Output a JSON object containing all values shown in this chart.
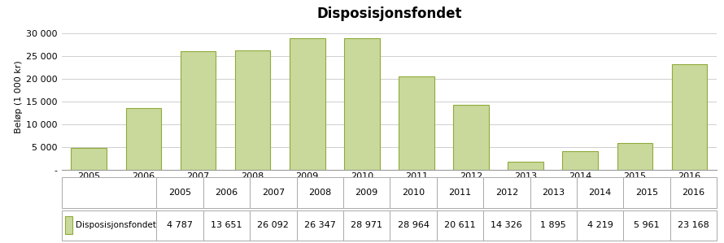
{
  "title": "Disposisjonsfondet",
  "ylabel": "Beløp (1 000 kr)",
  "categories": [
    "2005",
    "2006",
    "2007",
    "2008",
    "2009",
    "2010",
    "2011",
    "2012",
    "2013",
    "2014",
    "2015",
    "2016"
  ],
  "values": [
    4787,
    13651,
    26092,
    26347,
    28971,
    28964,
    20611,
    14326,
    1895,
    4219,
    5961,
    23168
  ],
  "bar_color": "#c9d99b",
  "bar_edge_color": "#8faa3a",
  "background_color": "#ffffff",
  "title_fontsize": 12,
  "axis_fontsize": 8,
  "tick_fontsize": 8,
  "ylim": [
    0,
    32000
  ],
  "yticks": [
    0,
    5000,
    10000,
    15000,
    20000,
    25000,
    30000
  ],
  "ytick_labels": [
    "-",
    "5 000",
    "10 000",
    "15 000",
    "20 000",
    "25 000",
    "30 000"
  ],
  "grid_color": "#c8c8c8",
  "legend_label": "Disposisjonsfondet",
  "legend_color": "#c9d99b",
  "legend_edge_color": "#8faa3a",
  "table_values": [
    "4 787",
    "13 651",
    "26 092",
    "26 347",
    "28 971",
    "28 964",
    "20 611",
    "14 326",
    "1 895",
    "4 219",
    "5 961",
    "23 168"
  ]
}
